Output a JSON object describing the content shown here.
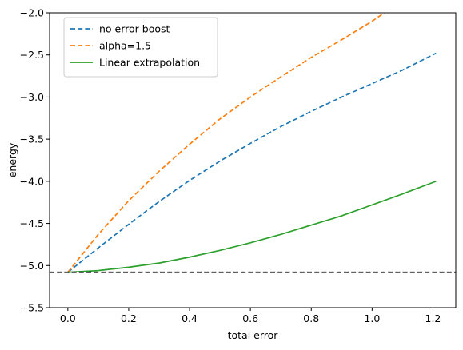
{
  "chart_data": {
    "type": "line",
    "xlabel": "total error",
    "ylabel": "energy",
    "xlim": [
      -0.06,
      1.275
    ],
    "ylim": [
      -5.5,
      -2.0
    ],
    "xticks": [
      0.0,
      0.2,
      0.4,
      0.6,
      0.8,
      1.0,
      1.2
    ],
    "xtick_labels": [
      "0.0",
      "0.2",
      "0.4",
      "0.6",
      "0.8",
      "1.0",
      "1.2"
    ],
    "yticks": [
      -5.5,
      -5.0,
      -4.5,
      -4.0,
      -3.5,
      -3.0,
      -2.5,
      -2.0
    ],
    "ytick_labels": [
      "−5.5",
      "−5.0",
      "−4.5",
      "−4.0",
      "−3.5",
      "−3.0",
      "−2.5",
      "−2.0"
    ],
    "grid": false,
    "legend_position": "top-left",
    "reference_line": {
      "y": -5.08,
      "style": "dashed",
      "color": "#000000"
    },
    "series": [
      {
        "name": "no error boost",
        "color": "#1f77b4",
        "style": "dashed",
        "x": [
          0.0,
          0.1,
          0.2,
          0.3,
          0.4,
          0.5,
          0.6,
          0.7,
          0.8,
          0.9,
          1.0,
          1.1,
          1.21
        ],
        "y": [
          -5.08,
          -4.79,
          -4.51,
          -4.24,
          -3.99,
          -3.76,
          -3.55,
          -3.35,
          -3.17,
          -3.0,
          -2.84,
          -2.68,
          -2.48
        ]
      },
      {
        "name": "alpha=1.5",
        "color": "#ff7f0e",
        "style": "dashed",
        "x": [
          0.0,
          0.1,
          0.2,
          0.3,
          0.4,
          0.5,
          0.6,
          0.7,
          0.8,
          0.9,
          1.0,
          1.04
        ],
        "y": [
          -5.08,
          -4.63,
          -4.23,
          -3.88,
          -3.56,
          -3.26,
          -3.0,
          -2.76,
          -2.53,
          -2.32,
          -2.1,
          -2.0
        ]
      },
      {
        "name": "Linear extrapolation",
        "color": "#2ca02c",
        "style": "solid",
        "x": [
          0.0,
          0.1,
          0.2,
          0.3,
          0.4,
          0.5,
          0.6,
          0.7,
          0.8,
          0.9,
          1.0,
          1.1,
          1.21
        ],
        "y": [
          -5.08,
          -5.06,
          -5.02,
          -4.97,
          -4.9,
          -4.82,
          -4.73,
          -4.63,
          -4.52,
          -4.41,
          -4.28,
          -4.15,
          -4.0
        ]
      }
    ]
  }
}
